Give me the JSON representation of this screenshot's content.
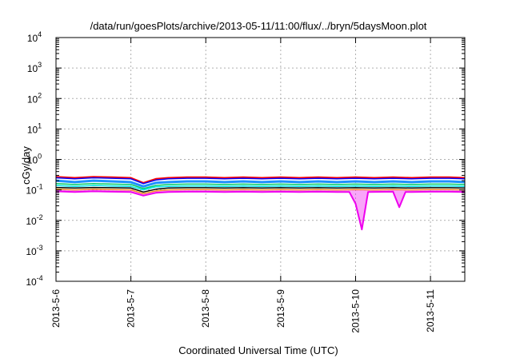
{
  "chart_data": {
    "type": "line",
    "title": "/data/run/goesPlots/archive/2013-05-11/11:00/flux/../bryn/5daysMoon.plot",
    "xlabel": "Coordinated Universal Time (UTC)",
    "ylabel": "cGy/day",
    "y_scale": "log",
    "ylim": [
      0.0001,
      10000
    ],
    "y_ticks": [
      {
        "value": 0.0001,
        "base": "10",
        "exp": "-4"
      },
      {
        "value": 0.001,
        "base": "10",
        "exp": "-3"
      },
      {
        "value": 0.01,
        "base": "10",
        "exp": "-2"
      },
      {
        "value": 0.1,
        "base": "10",
        "exp": "-1"
      },
      {
        "value": 1,
        "base": "10",
        "exp": "0"
      },
      {
        "value": 10,
        "base": "10",
        "exp": "1"
      },
      {
        "value": 100,
        "base": "10",
        "exp": "2"
      },
      {
        "value": 1000,
        "base": "10",
        "exp": "3"
      },
      {
        "value": 10000,
        "base": "10",
        "exp": "4"
      }
    ],
    "xlim": [
      "2013-05-06 00:00",
      "2013-05-11 11:00"
    ],
    "x_ticks": [
      {
        "label": "2013-5-6",
        "date": "2013-05-06"
      },
      {
        "label": "2013-5-7",
        "date": "2013-05-07"
      },
      {
        "label": "2013-5-8",
        "date": "2013-05-08"
      },
      {
        "label": "2013-5-9",
        "date": "2013-05-09"
      },
      {
        "label": "2013-5-10",
        "date": "2013-05-10"
      },
      {
        "label": "2013-5-11",
        "date": "2013-05-11"
      }
    ],
    "grid": true,
    "legend": "none",
    "series": [
      {
        "color": "#ff0000",
        "stroke_width": 2,
        "fill": false,
        "points": [
          [
            "2013-05-06 00:00",
            0.27
          ],
          [
            "2013-05-06 06:00",
            0.25
          ],
          [
            "2013-05-06 12:00",
            0.27
          ],
          [
            "2013-05-06 18:00",
            0.26
          ],
          [
            "2013-05-07 00:00",
            0.25
          ],
          [
            "2013-05-07 04:00",
            0.17
          ],
          [
            "2013-05-07 08:00",
            0.23
          ],
          [
            "2013-05-07 12:00",
            0.25
          ],
          [
            "2013-05-07 18:00",
            0.26
          ],
          [
            "2013-05-08 00:00",
            0.26
          ],
          [
            "2013-05-08 06:00",
            0.25
          ],
          [
            "2013-05-08 12:00",
            0.26
          ],
          [
            "2013-05-08 18:00",
            0.25
          ],
          [
            "2013-05-09 00:00",
            0.26
          ],
          [
            "2013-05-09 06:00",
            0.25
          ],
          [
            "2013-05-09 12:00",
            0.26
          ],
          [
            "2013-05-09 18:00",
            0.25
          ],
          [
            "2013-05-10 00:00",
            0.26
          ],
          [
            "2013-05-10 06:00",
            0.25
          ],
          [
            "2013-05-10 12:00",
            0.26
          ],
          [
            "2013-05-10 18:00",
            0.25
          ],
          [
            "2013-05-11 00:00",
            0.26
          ],
          [
            "2013-05-11 06:00",
            0.26
          ],
          [
            "2013-05-11 11:00",
            0.25
          ]
        ]
      },
      {
        "color": "#0000ff",
        "stroke_width": 1.5,
        "fill": false,
        "points": [
          [
            "2013-05-06 00:00",
            0.25
          ],
          [
            "2013-05-06 06:00",
            0.23
          ],
          [
            "2013-05-06 12:00",
            0.25
          ],
          [
            "2013-05-06 18:00",
            0.24
          ],
          [
            "2013-05-07 00:00",
            0.23
          ],
          [
            "2013-05-07 04:00",
            0.16
          ],
          [
            "2013-05-07 08:00",
            0.21
          ],
          [
            "2013-05-07 12:00",
            0.23
          ],
          [
            "2013-05-07 18:00",
            0.24
          ],
          [
            "2013-05-08 00:00",
            0.24
          ],
          [
            "2013-05-08 06:00",
            0.23
          ],
          [
            "2013-05-08 12:00",
            0.24
          ],
          [
            "2013-05-08 18:00",
            0.23
          ],
          [
            "2013-05-09 00:00",
            0.24
          ],
          [
            "2013-05-09 06:00",
            0.23
          ],
          [
            "2013-05-09 12:00",
            0.24
          ],
          [
            "2013-05-09 18:00",
            0.23
          ],
          [
            "2013-05-10 00:00",
            0.24
          ],
          [
            "2013-05-10 06:00",
            0.23
          ],
          [
            "2013-05-10 12:00",
            0.24
          ],
          [
            "2013-05-10 18:00",
            0.23
          ],
          [
            "2013-05-11 00:00",
            0.24
          ],
          [
            "2013-05-11 06:00",
            0.24
          ],
          [
            "2013-05-11 11:00",
            0.23
          ]
        ]
      },
      {
        "color": "#1e90ff",
        "stroke_width": 3,
        "fill": false,
        "points": [
          [
            "2013-05-06 00:00",
            0.2
          ],
          [
            "2013-05-06 06:00",
            0.18
          ],
          [
            "2013-05-06 12:00",
            0.2
          ],
          [
            "2013-05-06 18:00",
            0.19
          ],
          [
            "2013-05-07 00:00",
            0.18
          ],
          [
            "2013-05-07 04:00",
            0.13
          ],
          [
            "2013-05-07 08:00",
            0.17
          ],
          [
            "2013-05-07 12:00",
            0.18
          ],
          [
            "2013-05-07 18:00",
            0.19
          ],
          [
            "2013-05-08 00:00",
            0.19
          ],
          [
            "2013-05-08 06:00",
            0.18
          ],
          [
            "2013-05-08 12:00",
            0.19
          ],
          [
            "2013-05-08 18:00",
            0.18
          ],
          [
            "2013-05-09 00:00",
            0.19
          ],
          [
            "2013-05-09 06:00",
            0.18
          ],
          [
            "2013-05-09 12:00",
            0.19
          ],
          [
            "2013-05-09 18:00",
            0.18
          ],
          [
            "2013-05-10 00:00",
            0.19
          ],
          [
            "2013-05-10 06:00",
            0.18
          ],
          [
            "2013-05-10 12:00",
            0.19
          ],
          [
            "2013-05-10 18:00",
            0.18
          ],
          [
            "2013-05-11 00:00",
            0.19
          ],
          [
            "2013-05-11 06:00",
            0.19
          ],
          [
            "2013-05-11 11:00",
            0.18
          ]
        ]
      },
      {
        "color": "#00cc66",
        "stroke_width": 1.5,
        "fill": false,
        "points": [
          [
            "2013-05-06 00:00",
            0.16
          ],
          [
            "2013-05-06 06:00",
            0.15
          ],
          [
            "2013-05-06 12:00",
            0.16
          ],
          [
            "2013-05-06 18:00",
            0.155
          ],
          [
            "2013-05-07 00:00",
            0.15
          ],
          [
            "2013-05-07 04:00",
            0.11
          ],
          [
            "2013-05-07 08:00",
            0.14
          ],
          [
            "2013-05-07 12:00",
            0.15
          ],
          [
            "2013-05-07 18:00",
            0.155
          ],
          [
            "2013-05-08 00:00",
            0.155
          ],
          [
            "2013-05-08 06:00",
            0.15
          ],
          [
            "2013-05-08 12:00",
            0.155
          ],
          [
            "2013-05-08 18:00",
            0.15
          ],
          [
            "2013-05-09 00:00",
            0.155
          ],
          [
            "2013-05-09 06:00",
            0.15
          ],
          [
            "2013-05-09 12:00",
            0.155
          ],
          [
            "2013-05-09 18:00",
            0.15
          ],
          [
            "2013-05-10 00:00",
            0.155
          ],
          [
            "2013-05-10 06:00",
            0.15
          ],
          [
            "2013-05-10 12:00",
            0.155
          ],
          [
            "2013-05-10 18:00",
            0.15
          ],
          [
            "2013-05-11 00:00",
            0.155
          ],
          [
            "2013-05-11 06:00",
            0.155
          ],
          [
            "2013-05-11 11:00",
            0.15
          ]
        ]
      },
      {
        "color": "#00e5e5",
        "stroke_width": 1.5,
        "fill": false,
        "points": [
          [
            "2013-05-06 00:00",
            0.14
          ],
          [
            "2013-05-06 06:00",
            0.13
          ],
          [
            "2013-05-06 12:00",
            0.14
          ],
          [
            "2013-05-06 18:00",
            0.135
          ],
          [
            "2013-05-07 00:00",
            0.13
          ],
          [
            "2013-05-07 04:00",
            0.1
          ],
          [
            "2013-05-07 08:00",
            0.125
          ],
          [
            "2013-05-07 12:00",
            0.13
          ],
          [
            "2013-05-07 18:00",
            0.135
          ],
          [
            "2013-05-08 00:00",
            0.135
          ],
          [
            "2013-05-08 06:00",
            0.13
          ],
          [
            "2013-05-08 12:00",
            0.135
          ],
          [
            "2013-05-08 18:00",
            0.13
          ],
          [
            "2013-05-09 00:00",
            0.135
          ],
          [
            "2013-05-09 06:00",
            0.13
          ],
          [
            "2013-05-09 12:00",
            0.135
          ],
          [
            "2013-05-09 18:00",
            0.13
          ],
          [
            "2013-05-10 00:00",
            0.135
          ],
          [
            "2013-05-10 06:00",
            0.13
          ],
          [
            "2013-05-10 12:00",
            0.135
          ],
          [
            "2013-05-10 18:00",
            0.13
          ],
          [
            "2013-05-11 00:00",
            0.135
          ],
          [
            "2013-05-11 06:00",
            0.135
          ],
          [
            "2013-05-11 11:00",
            0.13
          ]
        ]
      },
      {
        "color": "#000000",
        "stroke_width": 1.5,
        "fill": false,
        "points": [
          [
            "2013-05-06 00:00",
            0.12
          ],
          [
            "2013-05-06 06:00",
            0.115
          ],
          [
            "2013-05-06 12:00",
            0.12
          ],
          [
            "2013-05-06 18:00",
            0.118
          ],
          [
            "2013-05-07 00:00",
            0.115
          ],
          [
            "2013-05-07 04:00",
            0.085
          ],
          [
            "2013-05-07 08:00",
            0.105
          ],
          [
            "2013-05-07 12:00",
            0.115
          ],
          [
            "2013-05-07 18:00",
            0.118
          ],
          [
            "2013-05-08 00:00",
            0.118
          ],
          [
            "2013-05-08 06:00",
            0.115
          ],
          [
            "2013-05-08 12:00",
            0.118
          ],
          [
            "2013-05-08 18:00",
            0.115
          ],
          [
            "2013-05-09 00:00",
            0.118
          ],
          [
            "2013-05-09 06:00",
            0.115
          ],
          [
            "2013-05-09 12:00",
            0.118
          ],
          [
            "2013-05-09 18:00",
            0.115
          ],
          [
            "2013-05-10 00:00",
            0.118
          ],
          [
            "2013-05-10 06:00",
            0.115
          ],
          [
            "2013-05-10 12:00",
            0.118
          ],
          [
            "2013-05-10 18:00",
            0.115
          ],
          [
            "2013-05-11 00:00",
            0.118
          ],
          [
            "2013-05-11 06:00",
            0.118
          ],
          [
            "2013-05-11 11:00",
            0.115
          ]
        ]
      },
      {
        "color": "#ffa500",
        "stroke_width": 1.5,
        "fill": false,
        "points": [
          [
            "2013-05-06 00:00",
            0.105
          ],
          [
            "2013-05-06 06:00",
            0.1
          ],
          [
            "2013-05-06 12:00",
            0.105
          ],
          [
            "2013-05-06 18:00",
            0.102
          ],
          [
            "2013-05-07 00:00",
            0.1
          ],
          [
            "2013-05-07 04:00",
            0.075
          ],
          [
            "2013-05-07 08:00",
            0.092
          ],
          [
            "2013-05-07 12:00",
            0.1
          ],
          [
            "2013-05-07 18:00",
            0.102
          ],
          [
            "2013-05-08 00:00",
            0.102
          ],
          [
            "2013-05-08 06:00",
            0.1
          ],
          [
            "2013-05-08 12:00",
            0.102
          ],
          [
            "2013-05-08 18:00",
            0.1
          ],
          [
            "2013-05-09 00:00",
            0.102
          ],
          [
            "2013-05-09 06:00",
            0.1
          ],
          [
            "2013-05-09 12:00",
            0.102
          ],
          [
            "2013-05-09 18:00",
            0.1
          ],
          [
            "2013-05-10 00:00",
            0.102
          ],
          [
            "2013-05-10 06:00",
            0.1
          ],
          [
            "2013-05-10 12:00",
            0.102
          ],
          [
            "2013-05-10 18:00",
            0.1
          ],
          [
            "2013-05-11 00:00",
            0.102
          ],
          [
            "2013-05-11 06:00",
            0.102
          ],
          [
            "2013-05-11 11:00",
            0.1
          ]
        ]
      },
      {
        "color": "#ee00ee",
        "stroke_width": 2,
        "fill": true,
        "points": [
          [
            "2013-05-06 00:00",
            0.09
          ],
          [
            "2013-05-06 06:00",
            0.085
          ],
          [
            "2013-05-06 12:00",
            0.09
          ],
          [
            "2013-05-06 18:00",
            0.087
          ],
          [
            "2013-05-07 00:00",
            0.085
          ],
          [
            "2013-05-07 04:00",
            0.065
          ],
          [
            "2013-05-07 08:00",
            0.08
          ],
          [
            "2013-05-07 12:00",
            0.085
          ],
          [
            "2013-05-07 18:00",
            0.087
          ],
          [
            "2013-05-08 00:00",
            0.087
          ],
          [
            "2013-05-08 06:00",
            0.085
          ],
          [
            "2013-05-08 12:00",
            0.087
          ],
          [
            "2013-05-08 18:00",
            0.085
          ],
          [
            "2013-05-09 00:00",
            0.087
          ],
          [
            "2013-05-09 06:00",
            0.085
          ],
          [
            "2013-05-09 12:00",
            0.087
          ],
          [
            "2013-05-09 18:00",
            0.085
          ],
          [
            "2013-05-09 22:00",
            0.085
          ],
          [
            "2013-05-10 00:00",
            0.035
          ],
          [
            "2013-05-10 02:00",
            0.005
          ],
          [
            "2013-05-10 04:00",
            0.085
          ],
          [
            "2013-05-10 12:00",
            0.087
          ],
          [
            "2013-05-10 14:00",
            0.027
          ],
          [
            "2013-05-10 16:00",
            0.085
          ],
          [
            "2013-05-10 18:00",
            0.085
          ],
          [
            "2013-05-11 00:00",
            0.087
          ],
          [
            "2013-05-11 06:00",
            0.087
          ],
          [
            "2013-05-11 11:00",
            0.085
          ]
        ]
      }
    ]
  }
}
